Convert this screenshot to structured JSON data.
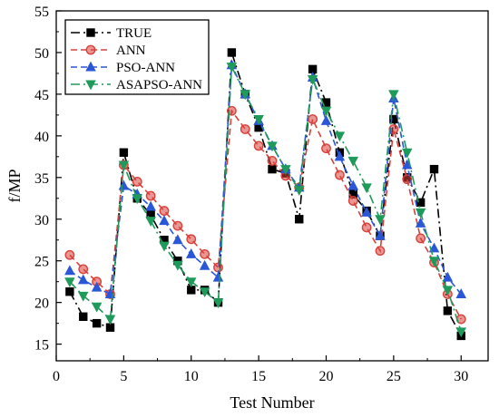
{
  "chart_data": {
    "type": "line",
    "xlabel": "Test Number",
    "ylabel": "f/MP",
    "xlim": [
      0,
      32
    ],
    "ylim": [
      13,
      55
    ],
    "xticks": [
      0,
      5,
      10,
      15,
      20,
      25,
      30
    ],
    "yticks": [
      15,
      20,
      25,
      30,
      35,
      40,
      45,
      50,
      55
    ],
    "x": [
      1,
      2,
      3,
      4,
      5,
      6,
      7,
      8,
      9,
      10,
      11,
      12,
      13,
      14,
      15,
      16,
      17,
      18,
      19,
      20,
      21,
      22,
      23,
      24,
      25,
      26,
      27,
      28,
      29,
      30
    ],
    "legend_position": "top-left",
    "grid": false,
    "series": [
      {
        "name": "TRUE",
        "color": "#000000",
        "marker": "square",
        "dash": "dashdot",
        "values": [
          21.3,
          18.3,
          17.5,
          17.0,
          38.0,
          32.5,
          30.5,
          27.5,
          25.0,
          21.5,
          21.5,
          20.0,
          50.0,
          45.0,
          41.0,
          36.0,
          35.5,
          30.0,
          48.0,
          44.0,
          38.0,
          33.0,
          31.0,
          28.0,
          42.0,
          35.0,
          32.0,
          36.0,
          19.0,
          16.0
        ]
      },
      {
        "name": "ANN",
        "color": "#d9403a",
        "marker": "circle",
        "dash": "dash",
        "values": [
          25.7,
          24.0,
          22.5,
          21.0,
          36.5,
          34.5,
          32.8,
          31.0,
          29.2,
          27.6,
          25.8,
          24.2,
          43.0,
          40.8,
          38.8,
          37.0,
          35.2,
          33.8,
          42.0,
          38.5,
          35.3,
          32.2,
          29.0,
          26.2,
          40.8,
          34.8,
          27.7,
          24.8,
          21.0,
          18.0
        ]
      },
      {
        "name": "PSO-ANN",
        "color": "#2a56d8",
        "marker": "triangle-up",
        "dash": "dash",
        "values": [
          23.8,
          22.7,
          21.8,
          21.0,
          34.0,
          33.0,
          31.5,
          29.8,
          27.5,
          25.8,
          24.4,
          23.0,
          48.5,
          45.0,
          41.8,
          38.8,
          36.0,
          33.8,
          47.0,
          41.8,
          37.5,
          34.0,
          30.8,
          28.0,
          44.5,
          36.5,
          29.5,
          26.5,
          23.0,
          21.0
        ]
      },
      {
        "name": "ASAPSO-ANN",
        "color": "#1e9a5a",
        "marker": "triangle-down",
        "dash": "dashdot",
        "values": [
          22.5,
          20.8,
          19.5,
          18.0,
          36.5,
          32.5,
          29.8,
          26.8,
          24.5,
          22.5,
          21.3,
          20.0,
          48.3,
          45.0,
          42.0,
          38.8,
          36.0,
          33.5,
          46.8,
          43.0,
          40.0,
          37.0,
          33.8,
          30.0,
          45.0,
          38.0,
          30.8,
          25.0,
          21.5,
          16.5
        ]
      }
    ]
  }
}
